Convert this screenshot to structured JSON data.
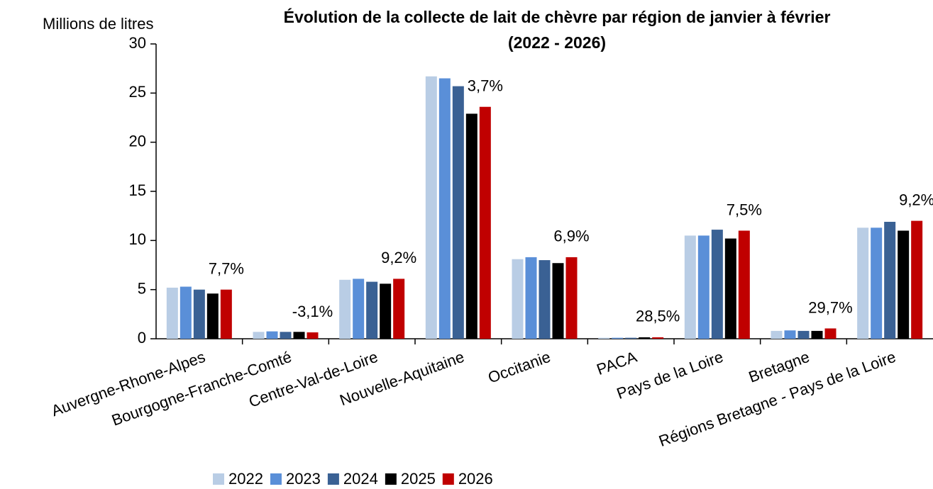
{
  "chart_data": {
    "type": "bar",
    "title": "Évolution de la collecte de lait de chèvre par région de janvier à février",
    "subtitle": "(2022 - 2026)",
    "y_label": "Millions de litres",
    "categories": [
      "Auvergne-Rhone-Alpes",
      "Bourgogne-Franche-Comté",
      "Centre-Val-de-Loire",
      "Nouvelle-Aquitaine",
      "Occitanie",
      "PACA",
      "Pays de la Loire",
      "Bretagne",
      "Régions Bretagne - Pays de la Loire"
    ],
    "series": [
      {
        "name": "2022",
        "color": "#b9cde5",
        "values": [
          5.2,
          0.7,
          6.0,
          26.7,
          8.1,
          0.1,
          10.5,
          0.8,
          11.3
        ]
      },
      {
        "name": "2023",
        "color": "#5a8fd8",
        "values": [
          5.3,
          0.75,
          6.1,
          26.5,
          8.3,
          0.1,
          10.5,
          0.85,
          11.3
        ]
      },
      {
        "name": "2024",
        "color": "#3a6194",
        "values": [
          5.0,
          0.7,
          5.8,
          25.7,
          8.0,
          0.1,
          11.1,
          0.8,
          11.9
        ]
      },
      {
        "name": "2025",
        "color": "#000000",
        "values": [
          4.6,
          0.7,
          5.6,
          22.9,
          7.7,
          0.15,
          10.2,
          0.8,
          11.0
        ]
      },
      {
        "name": "2026",
        "color": "#c00000",
        "values": [
          5.0,
          0.65,
          6.1,
          23.6,
          8.3,
          0.15,
          11.0,
          1.05,
          12.0
        ]
      }
    ],
    "annotations": [
      "7,7%",
      "-3,1%",
      "9,2%",
      "3,7%",
      "6,9%",
      "28,5%",
      "7,5%",
      "29,7%",
      "9,2%"
    ],
    "ylim": [
      0,
      30
    ],
    "yticks": [
      0,
      5,
      10,
      15,
      20,
      25,
      30
    ],
    "grid": false,
    "legend": "bottom"
  }
}
